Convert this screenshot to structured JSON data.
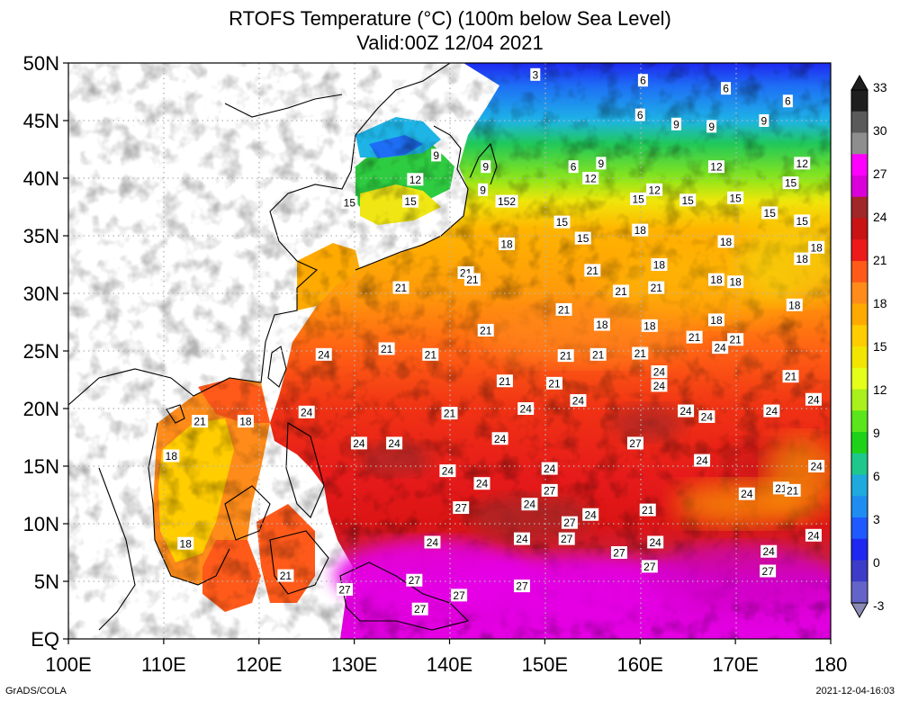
{
  "title_line1": "RTOFS Temperature (°C) (100m below Sea Level)",
  "title_line2": "Valid:00Z 12/04 2021",
  "lon_ticks": [
    "100E",
    "110E",
    "120E",
    "130E",
    "140E",
    "150E",
    "160E",
    "170E",
    "180"
  ],
  "lat_ticks": [
    "50N",
    "45N",
    "40N",
    "35N",
    "30N",
    "25N",
    "20N",
    "15N",
    "10N",
    "5N",
    "EQ"
  ],
  "colorbar": {
    "labels": [
      "33",
      "30",
      "27",
      "24",
      "21",
      "18",
      "15",
      "12",
      "9",
      "6",
      "3",
      "0",
      "-3"
    ],
    "colors": [
      "#1e1e1e",
      "#5a5a5a",
      "#8e8e8e",
      "#ff00ff",
      "#d900d9",
      "#a02828",
      "#c81414",
      "#ee1a1a",
      "#ff5a1a",
      "#ff8c1a",
      "#ffaa00",
      "#ffcd00",
      "#f2e600",
      "#e6ff1a",
      "#aaf01a",
      "#5ae61a",
      "#1ed21a",
      "#1ec88c",
      "#1eaadc",
      "#1e8cf0",
      "#1e5aff",
      "#1e28f0",
      "#3c3cc8",
      "#6464c8"
    ]
  },
  "contour_labels": [
    {
      "t": "3",
      "lon": 149.0,
      "lat": 49.0
    },
    {
      "t": "6",
      "lon": 160.3,
      "lat": 48.5
    },
    {
      "t": "6",
      "lon": 169.0,
      "lat": 47.8
    },
    {
      "t": "6",
      "lon": 175.5,
      "lat": 46.7
    },
    {
      "t": "6",
      "lon": 160.0,
      "lat": 45.5
    },
    {
      "t": "9",
      "lon": 163.8,
      "lat": 44.7
    },
    {
      "t": "9",
      "lon": 167.5,
      "lat": 44.5
    },
    {
      "t": "9",
      "lon": 173.0,
      "lat": 45.0
    },
    {
      "t": "9",
      "lon": 138.6,
      "lat": 42.0
    },
    {
      "t": "9",
      "lon": 143.8,
      "lat": 41.0
    },
    {
      "t": "6",
      "lon": 153.0,
      "lat": 41.0
    },
    {
      "t": "9",
      "lon": 155.9,
      "lat": 41.3
    },
    {
      "t": "12",
      "lon": 136.4,
      "lat": 39.9
    },
    {
      "t": "12",
      "lon": 154.8,
      "lat": 40.0
    },
    {
      "t": "12",
      "lon": 168.0,
      "lat": 41.0
    },
    {
      "t": "12",
      "lon": 177.0,
      "lat": 41.3
    },
    {
      "t": "9",
      "lon": 143.5,
      "lat": 39.0
    },
    {
      "t": "15",
      "lon": 129.5,
      "lat": 37.9
    },
    {
      "t": "15",
      "lon": 135.9,
      "lat": 38.0
    },
    {
      "t": "152",
      "lon": 146.0,
      "lat": 38.0
    },
    {
      "t": "15",
      "lon": 159.8,
      "lat": 38.2
    },
    {
      "t": "12",
      "lon": 161.5,
      "lat": 39.0
    },
    {
      "t": "15",
      "lon": 165.0,
      "lat": 38.1
    },
    {
      "t": "15",
      "lon": 170.0,
      "lat": 38.3
    },
    {
      "t": "15",
      "lon": 175.8,
      "lat": 39.6
    },
    {
      "t": "15",
      "lon": 173.6,
      "lat": 37.0
    },
    {
      "t": "15",
      "lon": 177.0,
      "lat": 36.3
    },
    {
      "t": "15",
      "lon": 151.8,
      "lat": 36.2
    },
    {
      "t": "15",
      "lon": 154.0,
      "lat": 34.8
    },
    {
      "t": "18",
      "lon": 146.0,
      "lat": 34.3
    },
    {
      "t": "18",
      "lon": 160.0,
      "lat": 35.5
    },
    {
      "t": "18",
      "lon": 169.0,
      "lat": 34.5
    },
    {
      "t": "18",
      "lon": 177.0,
      "lat": 33.0
    },
    {
      "t": "18",
      "lon": 178.5,
      "lat": 34.0
    },
    {
      "t": "18",
      "lon": 162.0,
      "lat": 32.5
    },
    {
      "t": "21",
      "lon": 155.0,
      "lat": 32.0
    },
    {
      "t": "21",
      "lon": 134.9,
      "lat": 30.5
    },
    {
      "t": "21",
      "lon": 141.7,
      "lat": 31.8
    },
    {
      "t": "21",
      "lon": 142.4,
      "lat": 31.2
    },
    {
      "t": "21",
      "lon": 158.0,
      "lat": 30.2
    },
    {
      "t": "21",
      "lon": 161.7,
      "lat": 30.5
    },
    {
      "t": "18",
      "lon": 168.0,
      "lat": 31.2
    },
    {
      "t": "18",
      "lon": 170.0,
      "lat": 31.0
    },
    {
      "t": "18",
      "lon": 176.2,
      "lat": 29.0
    },
    {
      "t": "21",
      "lon": 152.0,
      "lat": 28.6
    },
    {
      "t": "18",
      "lon": 168.0,
      "lat": 27.7
    },
    {
      "t": "18",
      "lon": 156.0,
      "lat": 27.3
    },
    {
      "t": "18",
      "lon": 161.0,
      "lat": 27.2
    },
    {
      "t": "21",
      "lon": 143.8,
      "lat": 26.8
    },
    {
      "t": "21",
      "lon": 165.7,
      "lat": 26.2
    },
    {
      "t": "21",
      "lon": 170.0,
      "lat": 26.0
    },
    {
      "t": "24",
      "lon": 168.4,
      "lat": 25.3
    },
    {
      "t": "21",
      "lon": 133.4,
      "lat": 25.2
    },
    {
      "t": "21",
      "lon": 138.0,
      "lat": 24.7
    },
    {
      "t": "24",
      "lon": 126.8,
      "lat": 24.7
    },
    {
      "t": "21",
      "lon": 152.2,
      "lat": 24.6
    },
    {
      "t": "21",
      "lon": 155.6,
      "lat": 24.7
    },
    {
      "t": "21",
      "lon": 160.0,
      "lat": 24.8
    },
    {
      "t": "21",
      "lon": 175.8,
      "lat": 22.8
    },
    {
      "t": "24",
      "lon": 162.0,
      "lat": 23.2
    },
    {
      "t": "24",
      "lon": 162.0,
      "lat": 22.0
    },
    {
      "t": "21",
      "lon": 145.8,
      "lat": 22.4
    },
    {
      "t": "21",
      "lon": 151.0,
      "lat": 22.2
    },
    {
      "t": "24",
      "lon": 153.5,
      "lat": 20.7
    },
    {
      "t": "24",
      "lon": 178.2,
      "lat": 20.8
    },
    {
      "t": "24",
      "lon": 148.0,
      "lat": 20.0
    },
    {
      "t": "24",
      "lon": 164.8,
      "lat": 19.8
    },
    {
      "t": "24",
      "lon": 167.0,
      "lat": 19.3
    },
    {
      "t": "24",
      "lon": 173.8,
      "lat": 19.8
    },
    {
      "t": "24",
      "lon": 125.0,
      "lat": 19.7
    },
    {
      "t": "21",
      "lon": 140.0,
      "lat": 19.6
    },
    {
      "t": "21",
      "lon": 113.8,
      "lat": 18.9
    },
    {
      "t": "18",
      "lon": 118.6,
      "lat": 18.9
    },
    {
      "t": "24",
      "lon": 145.3,
      "lat": 17.4
    },
    {
      "t": "24",
      "lon": 130.5,
      "lat": 17.0
    },
    {
      "t": "24",
      "lon": 134.2,
      "lat": 17.0
    },
    {
      "t": "27",
      "lon": 159.5,
      "lat": 17.0
    },
    {
      "t": "18",
      "lon": 110.8,
      "lat": 15.9
    },
    {
      "t": "24",
      "lon": 166.5,
      "lat": 15.5
    },
    {
      "t": "24",
      "lon": 178.5,
      "lat": 15.0
    },
    {
      "t": "24",
      "lon": 139.8,
      "lat": 14.6
    },
    {
      "t": "24",
      "lon": 150.5,
      "lat": 14.8
    },
    {
      "t": "24",
      "lon": 143.4,
      "lat": 13.5
    },
    {
      "t": "27",
      "lon": 150.5,
      "lat": 12.9
    },
    {
      "t": "21",
      "lon": 174.8,
      "lat": 13.1
    },
    {
      "t": "21",
      "lon": 176.0,
      "lat": 12.9
    },
    {
      "t": "24",
      "lon": 171.2,
      "lat": 12.6
    },
    {
      "t": "24",
      "lon": 148.4,
      "lat": 11.7
    },
    {
      "t": "27",
      "lon": 141.2,
      "lat": 11.4
    },
    {
      "t": "21",
      "lon": 160.8,
      "lat": 11.2
    },
    {
      "t": "24",
      "lon": 154.8,
      "lat": 10.8
    },
    {
      "t": "27",
      "lon": 152.6,
      "lat": 10.1
    },
    {
      "t": "24",
      "lon": 178.2,
      "lat": 9.0
    },
    {
      "t": "18",
      "lon": 112.3,
      "lat": 8.3
    },
    {
      "t": "24",
      "lon": 138.2,
      "lat": 8.4
    },
    {
      "t": "24",
      "lon": 147.6,
      "lat": 8.7
    },
    {
      "t": "27",
      "lon": 152.3,
      "lat": 8.7
    },
    {
      "t": "24",
      "lon": 161.6,
      "lat": 8.4
    },
    {
      "t": "27",
      "lon": 157.8,
      "lat": 7.5
    },
    {
      "t": "24",
      "lon": 173.5,
      "lat": 7.6
    },
    {
      "t": "27",
      "lon": 161.0,
      "lat": 6.3
    },
    {
      "t": "27",
      "lon": 173.4,
      "lat": 5.9
    },
    {
      "t": "21",
      "lon": 122.8,
      "lat": 5.5
    },
    {
      "t": "27",
      "lon": 136.3,
      "lat": 5.1
    },
    {
      "t": "27",
      "lon": 147.6,
      "lat": 4.6
    },
    {
      "t": "27",
      "lon": 129.0,
      "lat": 4.3
    },
    {
      "t": "27",
      "lon": 141.0,
      "lat": 3.8
    },
    {
      "t": "27",
      "lon": 136.9,
      "lat": 2.6
    }
  ],
  "credit_left": "GrADS/COLA",
  "credit_right": "2021-12-04-16:03"
}
